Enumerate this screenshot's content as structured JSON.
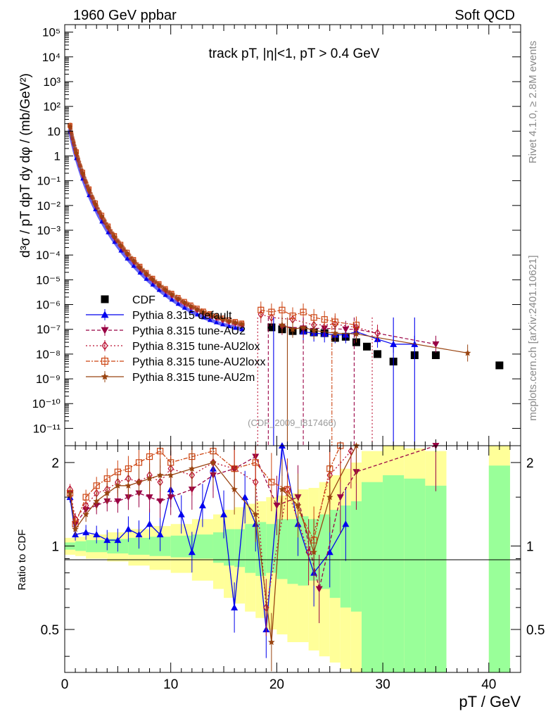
{
  "header": {
    "left": "1960 GeV ppbar",
    "right": "Soft QCD"
  },
  "sidebar": {
    "rivet": "Rivet 4.1.0, ≥ 2.8M events",
    "mcplots": "mcplots.cern.ch [arXiv:2401.10621]"
  },
  "chart_data": {
    "type": "scatter",
    "title": "track pT, |η|<1, pT > 0.4 GeV",
    "analysis_id": "(CDF_2009_I817466)",
    "xlabel": "pT / GeV",
    "ylabel": "d³σ / pT dpT dy dφ / (mb/GeV²)",
    "ratio_ylabel": "Ratio to CDF",
    "xlim": [
      0,
      43
    ],
    "ylim": [
      2e-12,
      200000.0
    ],
    "ratio_ylim": [
      0.35,
      2.3
    ],
    "x_ticks": [
      0,
      10,
      20,
      30,
      40
    ],
    "x_tick_labels": [
      "0",
      "10",
      "20",
      "30",
      "40"
    ],
    "y_tick_labels": [
      "10⁻¹¹",
      "10⁻¹⁰",
      "10⁻⁹",
      "10⁻⁸",
      "10⁻⁷",
      "10⁻⁶",
      "10⁻⁵",
      "10⁻⁴",
      "10⁻³",
      "10⁻²",
      "10⁻¹",
      "1",
      "10",
      "10²",
      "10³",
      "10⁴",
      "10⁵"
    ],
    "ratio_ticks": [
      0.5,
      1,
      2
    ],
    "ratio_tick_labels": [
      "0.5",
      "1",
      "2"
    ],
    "legend_position": "lower-left",
    "colors": {
      "cdf": "#000000",
      "default": "#0000ee",
      "au2": "#990044",
      "au2lox": "#bb1133",
      "au2loxx": "#cc4411",
      "au2m": "#994411",
      "band_inner": "#99ff99",
      "band_outer": "#ffff99"
    },
    "series": [
      {
        "name": "CDF",
        "key": "cdf",
        "x": [
          19.5,
          20.5,
          21.5,
          22.5,
          23.5,
          24.5,
          25.5,
          26.5,
          27.5,
          28.5,
          29.5,
          31.0,
          33.0,
          35.0,
          41.0
        ],
        "y": [
          1.2e-07,
          1e-07,
          8.5e-08,
          9e-08,
          7.5e-08,
          7e-08,
          4.5e-08,
          5e-08,
          3e-08,
          2e-08,
          1e-08,
          5e-09,
          9e-09,
          9e-09,
          3.5e-09
        ]
      },
      {
        "name": "Pythia 8.315 default",
        "key": "default",
        "x": [
          22.5,
          23.5,
          24.5,
          25.5,
          26.5,
          27.5,
          29.5,
          31.0,
          33.0
        ],
        "y": [
          8e-08,
          7e-08,
          6.5e-08,
          6e-08,
          6e-08,
          8e-08,
          4e-08,
          2.5e-08,
          2.5e-08
        ]
      },
      {
        "name": "Pythia 8.315 tune-AU2",
        "key": "au2",
        "x": [
          20.5,
          22.5,
          24.5,
          26.5,
          27.5,
          35.0
        ],
        "y": [
          1.3e-07,
          1.1e-07,
          1.1e-07,
          1e-07,
          1e-07,
          2.5e-08
        ]
      },
      {
        "name": "Pythia 8.315 tune-AU2lox",
        "key": "au2lox",
        "x": [
          18.5,
          19.5,
          21.5,
          23.5,
          25.5,
          27.5,
          29.5
        ],
        "y": [
          4e-07,
          3e-07,
          2.5e-07,
          1.5e-07,
          1.6e-07,
          1.2e-07,
          7e-08
        ]
      },
      {
        "name": "Pythia 8.315 tune-AU2loxx",
        "key": "au2loxx",
        "x": [
          18.5,
          19.5,
          20.5,
          21.5,
          22.5,
          23.5,
          24.5,
          25.5,
          27.5
        ],
        "y": [
          6e-07,
          5e-07,
          6e-07,
          3.5e-07,
          5e-07,
          3e-07,
          2.5e-07,
          2e-07,
          1.5e-07
        ]
      },
      {
        "name": "Pythia 8.315 tune-AU2m",
        "key": "au2m",
        "x": [
          20.5,
          21.5,
          22.5,
          23.5,
          25.5,
          27.5,
          38.0
        ],
        "y": [
          1.5e-07,
          1e-07,
          1.2e-07,
          9e-08,
          7e-08,
          6.5e-08,
          1.1e-08
        ]
      }
    ],
    "ratio_series": [
      {
        "key": "default",
        "x": [
          0.5,
          1,
          2,
          3,
          4,
          5,
          6,
          7,
          8,
          9,
          10,
          11,
          12,
          13,
          14,
          15,
          16,
          17,
          18,
          19,
          20.5,
          22,
          23.5,
          25,
          26.5
        ],
        "y": [
          1.5,
          1.1,
          1.12,
          1.1,
          1.05,
          1.05,
          1.15,
          1.1,
          1.2,
          1.1,
          1.6,
          1.3,
          0.95,
          1.4,
          1.9,
          1.3,
          0.6,
          1.5,
          1.2,
          0.5,
          2.3,
          1.2,
          0.8,
          0.95,
          1.2
        ]
      },
      {
        "key": "au2",
        "x": [
          0.5,
          1,
          2,
          3,
          4,
          5,
          6,
          7,
          8,
          9,
          10,
          12,
          14,
          16,
          18,
          20,
          22,
          24,
          26,
          27.5,
          35
        ],
        "y": [
          1.55,
          1.2,
          1.35,
          1.4,
          1.45,
          1.45,
          1.5,
          1.55,
          1.5,
          1.45,
          1.5,
          1.6,
          1.8,
          1.9,
          2.1,
          1.4,
          1.5,
          0.7,
          1.5,
          1.85,
          2.3
        ]
      },
      {
        "key": "au2lox",
        "x": [
          0.5,
          1,
          2,
          3,
          4,
          5,
          6,
          7,
          8,
          9,
          10,
          12,
          14,
          16,
          18,
          19,
          21,
          23,
          25,
          27
        ],
        "y": [
          1.6,
          1.25,
          1.4,
          1.55,
          1.6,
          1.7,
          1.75,
          1.7,
          1.8,
          1.7,
          1.9,
          1.8,
          2.0,
          1.9,
          1.7,
          0.6,
          1.6,
          0.95,
          1.8,
          2.2
        ]
      },
      {
        "key": "au2loxx",
        "x": [
          0.5,
          1,
          2,
          3,
          4,
          5,
          6,
          7,
          8,
          9,
          10,
          12,
          14,
          16,
          18,
          19.5,
          21,
          23.5,
          25,
          26
        ],
        "y": [
          1.55,
          1.2,
          1.5,
          1.65,
          1.75,
          1.85,
          1.9,
          2.0,
          2.1,
          2.2,
          2.0,
          2.1,
          2.2,
          1.9,
          2.0,
          1.7,
          1.6,
          1.05,
          1.9,
          2.3
        ]
      },
      {
        "key": "au2m",
        "x": [
          0.5,
          1,
          2,
          3,
          4,
          5,
          6,
          7,
          8,
          9,
          10,
          12,
          14,
          16,
          18,
          19.5,
          20.5,
          22,
          23.5,
          25,
          27.5
        ],
        "y": [
          1.55,
          1.15,
          1.3,
          1.45,
          1.55,
          1.65,
          1.65,
          1.7,
          1.75,
          1.8,
          1.8,
          1.9,
          2.0,
          1.6,
          1.3,
          0.45,
          1.6,
          1.4,
          0.95,
          1.5,
          2.3
        ]
      }
    ],
    "ratio_bands": {
      "edges": [
        0,
        1,
        2,
        4,
        6,
        8,
        10,
        12,
        14,
        15,
        16,
        17,
        18,
        19,
        20,
        21,
        22,
        23,
        24,
        25,
        26,
        27,
        28,
        30,
        32,
        34,
        36,
        40,
        42
      ],
      "inner_lo": [
        0.97,
        0.96,
        0.95,
        0.94,
        0.93,
        0.92,
        0.91,
        0.9,
        0.87,
        0.85,
        0.84,
        0.8,
        0.78,
        0.8,
        0.76,
        0.73,
        0.72,
        0.75,
        0.7,
        0.65,
        0.6,
        0.58,
        0.35,
        0.35,
        0.35,
        0.35,
        null,
        0.35
      ],
      "inner_hi": [
        1.03,
        1.04,
        1.05,
        1.06,
        1.07,
        1.08,
        1.09,
        1.1,
        1.12,
        1.15,
        1.15,
        1.2,
        1.22,
        1.2,
        1.25,
        1.25,
        1.28,
        1.25,
        1.3,
        1.35,
        1.4,
        1.45,
        1.7,
        1.8,
        1.75,
        1.65,
        null,
        1.95
      ],
      "outer_lo": [
        0.93,
        0.92,
        0.9,
        0.88,
        0.85,
        0.82,
        0.8,
        0.75,
        0.7,
        0.65,
        0.62,
        0.58,
        0.55,
        0.5,
        0.48,
        0.45,
        0.45,
        0.42,
        0.4,
        0.38,
        0.36,
        0.35,
        0.35,
        0.35,
        0.35,
        0.35,
        null,
        0.35
      ],
      "outer_hi": [
        1.07,
        1.08,
        1.1,
        1.12,
        1.15,
        1.18,
        1.2,
        1.25,
        1.3,
        1.35,
        1.38,
        1.42,
        1.45,
        1.5,
        1.52,
        1.55,
        1.6,
        1.62,
        1.7,
        1.8,
        1.9,
        2.0,
        2.2,
        2.3,
        2.25,
        2.2,
        null,
        2.3
      ]
    }
  }
}
